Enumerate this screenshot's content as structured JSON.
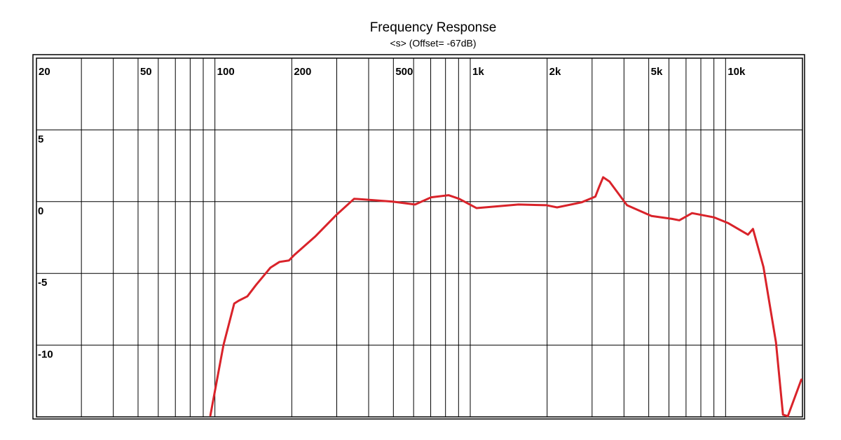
{
  "chart_data": {
    "type": "line",
    "title": "Frequency Response",
    "subtitle": "<s> (Offset= -67dB)",
    "xscale": "log",
    "xlim": [
      20,
      20000
    ],
    "xticks": [
      20,
      50,
      100,
      200,
      500,
      {
        "value": 1000,
        "label": "1k"
      },
      {
        "value": 2000,
        "label": "2k"
      },
      {
        "value": 5000,
        "label": "5k"
      },
      {
        "value": 10000,
        "label": "10k"
      }
    ],
    "xminorticks": [
      30,
      40,
      60,
      70,
      80,
      90,
      300,
      400,
      600,
      700,
      800,
      900,
      3000,
      4000,
      6000,
      7000,
      8000,
      9000
    ],
    "ylim": [
      -15,
      10
    ],
    "yticks": [
      5,
      0,
      -5,
      -10
    ],
    "grid": true,
    "series": [
      {
        "color": "#d9232a",
        "x": [
          96,
          108,
          119,
          124,
          134,
          145,
          165,
          179,
          195,
          205,
          248,
          300,
          351,
          386,
          496,
          608,
          703,
          822,
          904,
          1059,
          1545,
          1989,
          2188,
          2727,
          3090,
          3192,
          3315,
          3510,
          4110,
          5125,
          6170,
          6590,
          7390,
          9030,
          10250,
          12240,
          12800,
          14070,
          15750,
          16780,
          17530,
          19800
        ],
        "values": [
          -14.9,
          -10,
          -7.1,
          -6.9,
          -6.6,
          -5.8,
          -4.6,
          -4.2,
          -4.1,
          -3.7,
          -2.4,
          -0.9,
          0.2,
          0.15,
          0,
          -0.2,
          0.3,
          0.45,
          0.2,
          -0.45,
          -0.2,
          -0.25,
          -0.4,
          -0.05,
          0.35,
          1.0,
          1.7,
          1.4,
          -0.25,
          -1.0,
          -1.2,
          -1.3,
          -0.8,
          -1.1,
          -1.5,
          -2.3,
          -1.9,
          -4.55,
          -9.8,
          -14.85,
          -14.95,
          -12.4
        ]
      }
    ]
  }
}
